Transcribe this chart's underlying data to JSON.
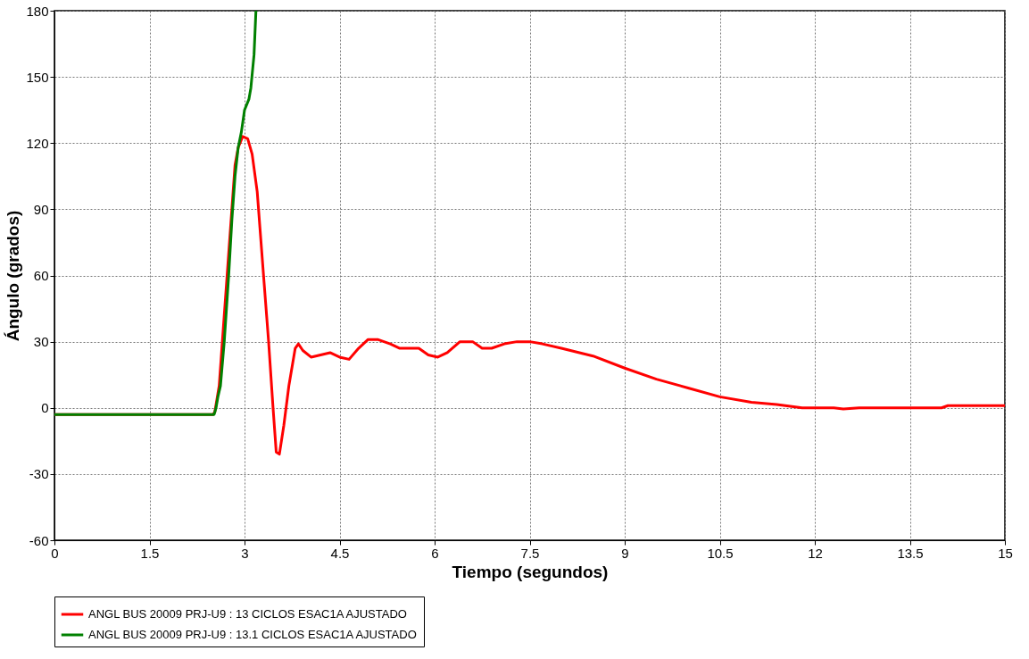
{
  "chart_data": {
    "type": "line",
    "xlabel": "Tiempo (segundos)",
    "ylabel": "Ángulo (grados)",
    "xlim": [
      0,
      15
    ],
    "xticks": [
      0,
      1.5,
      3,
      4.5,
      6,
      7.5,
      9,
      10.5,
      12,
      13.5,
      15
    ],
    "ylim": [
      -60,
      180
    ],
    "yticks": [
      -60,
      -30,
      0,
      30,
      60,
      90,
      120,
      150,
      180
    ],
    "grid": true,
    "legend": "bottom",
    "line_style": "solid",
    "marker": "none",
    "series": [
      {
        "name": "ANGL BUS 20009 PRJ-U9 : 13 CICLOS ESAC1A AJUSTADO",
        "color": "#ff0000",
        "x": [
          0,
          2.5,
          2.53,
          2.6,
          2.7,
          2.8,
          2.85,
          2.9,
          2.97,
          3.05,
          3.12,
          3.2,
          3.3,
          3.38,
          3.45,
          3.5,
          3.55,
          3.62,
          3.7,
          3.8,
          3.85,
          3.92,
          4.05,
          4.2,
          4.35,
          4.5,
          4.65,
          4.8,
          4.95,
          5.1,
          5.3,
          5.45,
          5.6,
          5.75,
          5.9,
          6.05,
          6.2,
          6.4,
          6.6,
          6.75,
          6.9,
          7.1,
          7.3,
          7.5,
          7.7,
          8,
          8.5,
          9,
          9.5,
          10,
          10.5,
          11,
          11.4,
          11.8,
          12.3,
          12.45,
          12.7,
          14,
          14.1,
          15
        ],
        "values": [
          -3,
          -3,
          -2,
          10,
          50,
          90,
          110,
          118,
          123,
          122,
          115,
          98,
          60,
          30,
          0,
          -20,
          -21,
          -8,
          10,
          27,
          29,
          26,
          23,
          24,
          25,
          23,
          22,
          27,
          31,
          31,
          29,
          27,
          27,
          27,
          24,
          23,
          25,
          30,
          30,
          27,
          27,
          29,
          30,
          30,
          29,
          27,
          23.5,
          18,
          13,
          9,
          5,
          2.5,
          1.5,
          0,
          0,
          -0.5,
          0,
          0,
          1,
          1
        ]
      },
      {
        "name": "ANGL BUS 20009 PRJ-U9 : 13.1 CICLOS ESAC1A AJUSTADO",
        "color": "#008000",
        "x": [
          0,
          2.52,
          2.55,
          2.58,
          2.62,
          2.68,
          2.75,
          2.8,
          2.85,
          2.9,
          2.95,
          3.0,
          3.07,
          3.1,
          3.15,
          3.18
        ],
        "values": [
          -3,
          -3,
          0,
          5,
          10,
          30,
          60,
          85,
          105,
          118,
          125,
          135,
          140,
          145,
          160,
          180
        ]
      }
    ]
  }
}
